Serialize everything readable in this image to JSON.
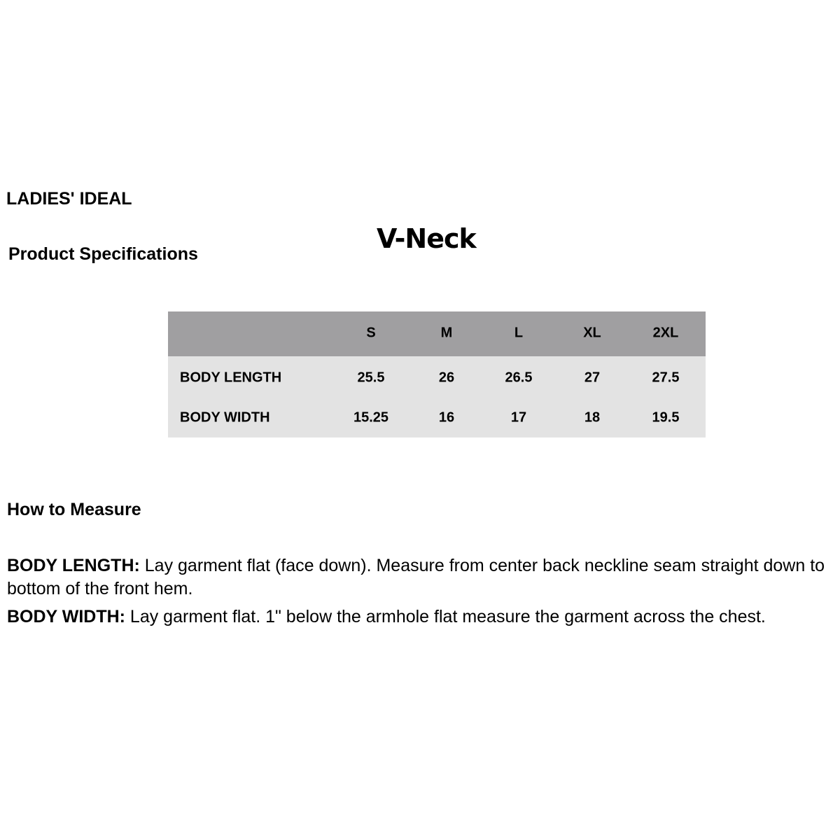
{
  "header": {
    "brand": "LADIES' IDEAL",
    "subtitle": "Product Specifications",
    "product": "V-Neck"
  },
  "table": {
    "colors": {
      "header_bg": "#a09fa1",
      "body_bg": "#e3e3e3"
    },
    "sizes": [
      "S",
      "M",
      "L",
      "XL",
      "2XL"
    ],
    "rows": [
      {
        "label": "BODY LENGTH",
        "values": [
          "25.5",
          "26",
          "26.5",
          "27",
          "27.5"
        ]
      },
      {
        "label": "BODY WIDTH",
        "values": [
          "15.25",
          "16",
          "17",
          "18",
          "19.5"
        ]
      }
    ]
  },
  "how_to": {
    "title": "How to Measure",
    "items": [
      {
        "term": "BODY LENGTH:",
        "text": " Lay garment flat (face down). Measure from center back neckline seam straight down to bottom of the front hem."
      },
      {
        "term": "BODY WIDTH:",
        "text": " Lay garment flat. 1\" below the armhole flat measure the garment across the chest."
      }
    ]
  }
}
